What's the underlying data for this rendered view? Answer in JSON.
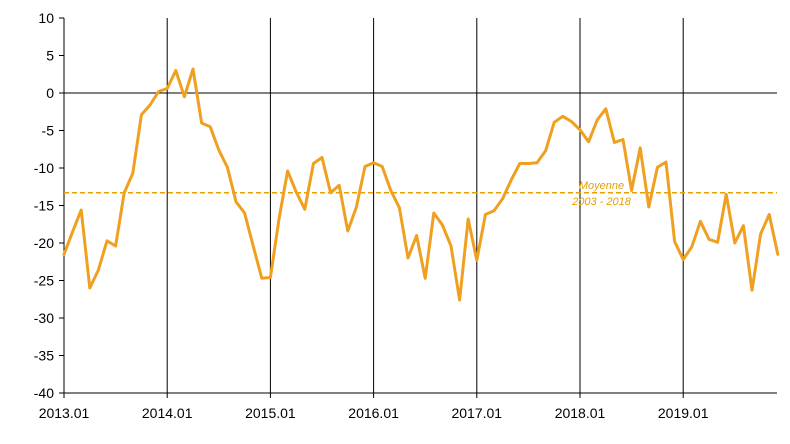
{
  "chart_data": {
    "type": "line",
    "title": "",
    "xlabel": "",
    "ylabel": "",
    "ylim": [
      -40,
      10
    ],
    "yticks": [
      10,
      5,
      0,
      -5,
      -10,
      -15,
      -20,
      -25,
      -30,
      -35,
      -40
    ],
    "xticks": [
      "2013.01",
      "2014.01",
      "2015.01",
      "2016.01",
      "2017.01",
      "2018.01",
      "2019.01"
    ],
    "grid": "vertical lines at each January",
    "legend": "none",
    "colors": {
      "series": "#F0A020",
      "average": "#E8A000",
      "axis": "#000000"
    },
    "series": [
      {
        "start": "2013.01",
        "frequency": "monthly",
        "values": [
          -21.5,
          -18.5,
          -15.6,
          -26.0,
          -23.6,
          -19.7,
          -20.4,
          -13.3,
          -10.7,
          -2.9,
          -1.6,
          0.2,
          0.6,
          3.0,
          -0.5,
          3.2,
          -4.0,
          -4.5,
          -7.6,
          -9.9,
          -14.5,
          -16.0,
          -20.4,
          -24.7,
          -24.6,
          -16.8,
          -10.4,
          -13.2,
          -15.5,
          -9.4,
          -8.6,
          -13.3,
          -12.3,
          -18.4,
          -15.2,
          -9.8,
          -9.3,
          -9.8,
          -13.0,
          -15.3,
          -22.0,
          -19.0,
          -24.7,
          -16.0,
          -17.6,
          -20.4,
          -27.6,
          -16.8,
          -22.3,
          -16.2,
          -15.7,
          -14.1,
          -11.6,
          -9.4,
          -9.4,
          -9.3,
          -7.7,
          -3.9,
          -3.1,
          -3.8,
          -4.9,
          -6.5,
          -3.6,
          -2.1,
          -6.6,
          -6.2,
          -13.0,
          -7.3,
          -15.2,
          -9.9,
          -9.2,
          -19.8,
          -22.2,
          -20.5,
          -17.1,
          -19.5,
          -19.9,
          -13.5,
          -20.0,
          -17.7,
          -26.3,
          -18.8,
          -16.2,
          -21.5
        ]
      }
    ],
    "average": {
      "value": -13.3,
      "label_line1": "Moyenne",
      "label_line2": "2003 - 2018"
    }
  }
}
